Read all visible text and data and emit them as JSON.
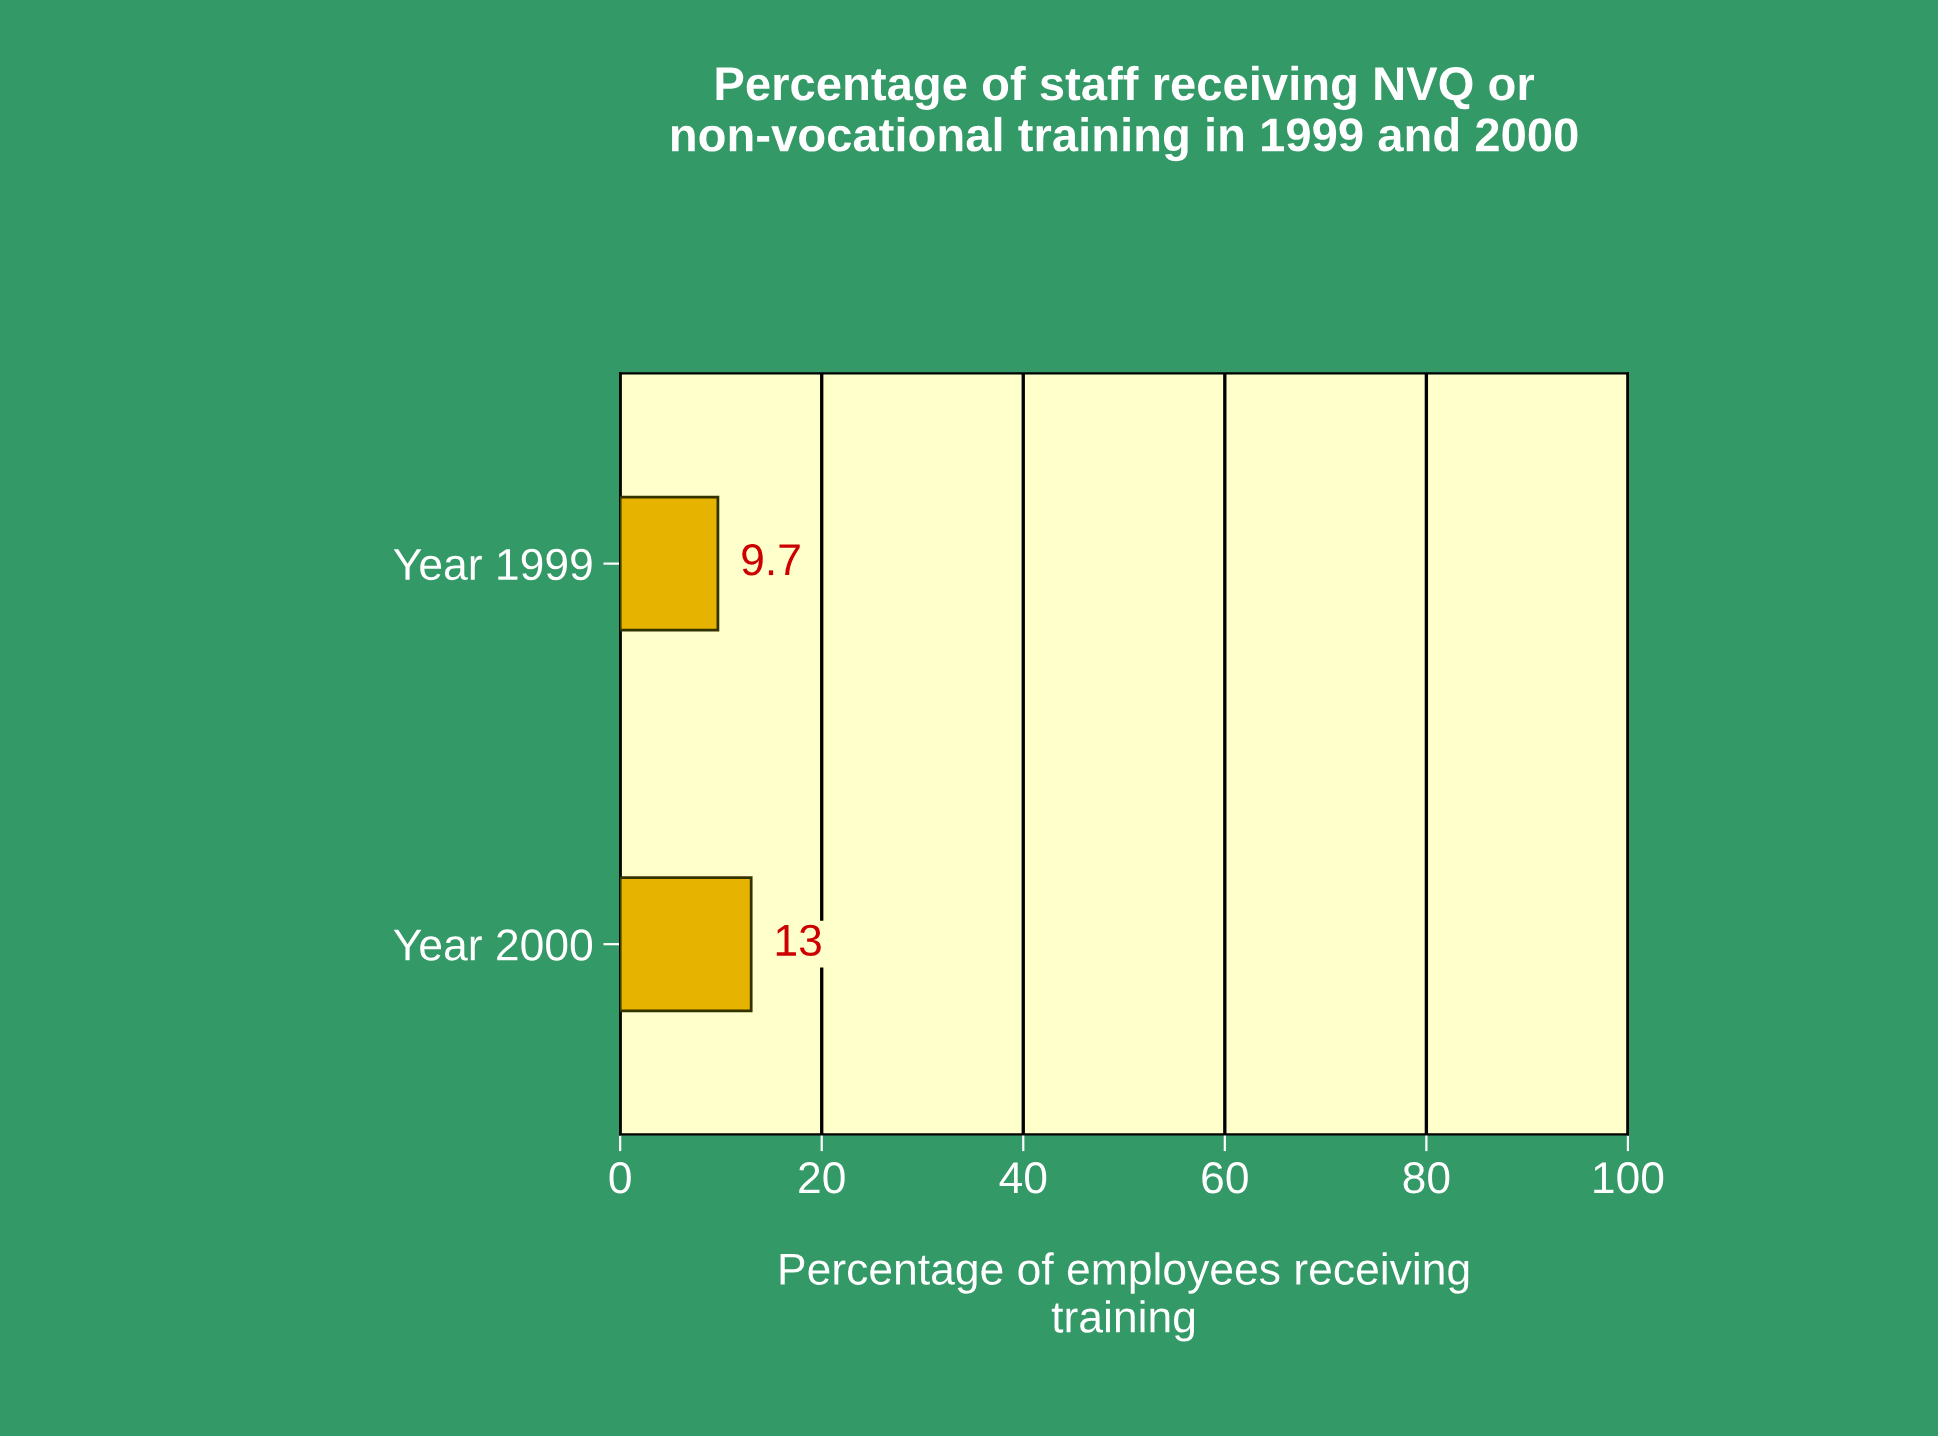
{
  "chart_data": {
    "type": "bar",
    "orientation": "horizontal",
    "title": "Percentage of staff receiving NVQ or\nnon-vocational training in 1999 and 2000",
    "xlabel": "Percentage of employees receiving\ntraining",
    "categories": [
      "Year 1999",
      "Year 2000"
    ],
    "values": [
      9.7,
      13
    ],
    "color": "#e6b400",
    "xlim": [
      0,
      100
    ],
    "xticks": [
      0,
      20,
      40,
      60,
      80,
      100
    ],
    "grid": "x",
    "data_labels": true
  }
}
